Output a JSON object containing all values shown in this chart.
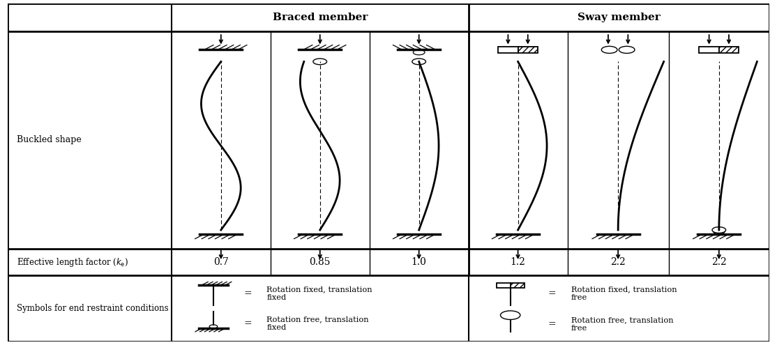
{
  "title_braced": "Braced member",
  "title_sway": "Sway member",
  "ke_values": [
    "0.7",
    "0.85",
    "1.0",
    "1.2",
    "2.2",
    "2.2"
  ],
  "buckled_shape_label": "Buckled shape",
  "symbols_label": "Symbols for end restraint conditions",
  "symbol_descriptions": [
    "Rotation fixed, translation\nfixed",
    "Rotation free, translation\nfixed",
    "Rotation fixed, translation\nfree",
    "Rotation free, translation\nfree"
  ],
  "bg_color": "#ffffff",
  "figsize": [
    11.14,
    4.95
  ],
  "dpi": 100
}
